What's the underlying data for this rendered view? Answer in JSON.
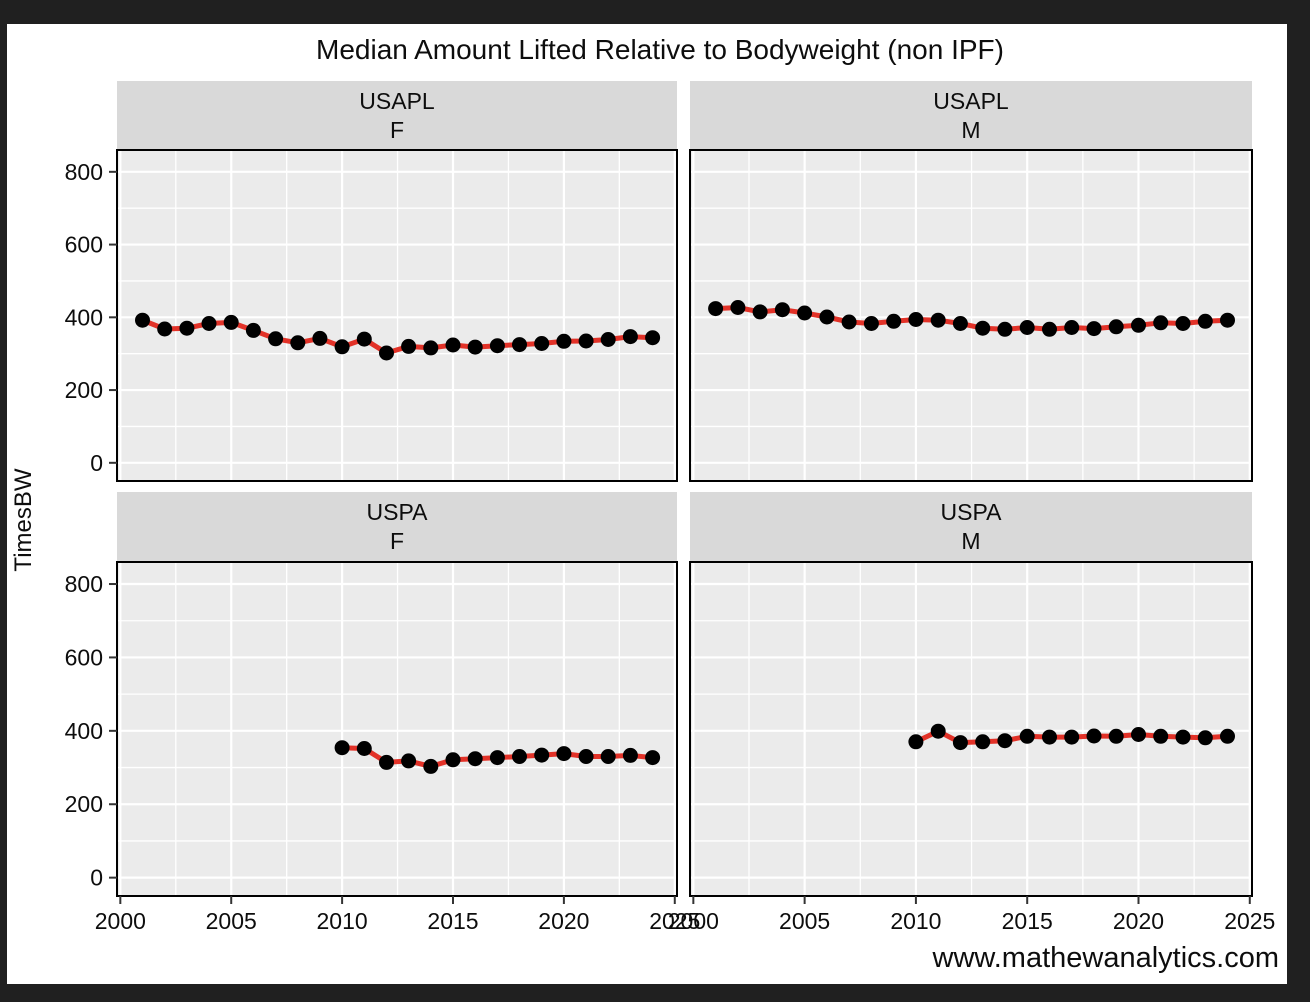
{
  "chart_data": {
    "type": "line",
    "title": "Median Amount Lifted Relative to Bodyweight (non IPF)",
    "ylabel": "TimesBW",
    "watermark": "www.mathewanalytics.com",
    "x_ticks": [
      2000,
      2005,
      2010,
      2015,
      2020,
      2025
    ],
    "y_ticks": [
      0,
      200,
      400,
      600,
      800
    ],
    "x_minor": [
      2002.5,
      2007.5,
      2012.5,
      2017.5,
      2022.5
    ],
    "y_minor": [
      100,
      300,
      500,
      700
    ],
    "xlim": [
      1999.85,
      2025.1
    ],
    "ylim": [
      -50,
      860
    ],
    "grid": true,
    "legend": "none",
    "colors": {
      "frame": "#202020",
      "background": "#ffffff",
      "panel_bg": "#ebebeb",
      "strip_bg": "#d9d9d9",
      "grid": "#ffffff",
      "line": "#e23228",
      "point": "#000000",
      "border": "#000000",
      "tick": "#333333",
      "text": "#0d0d0d"
    },
    "facets": [
      {
        "federation": "USAPL",
        "sex": "F",
        "years": [
          2001,
          2002,
          2003,
          2004,
          2005,
          2006,
          2007,
          2008,
          2009,
          2010,
          2011,
          2012,
          2013,
          2014,
          2015,
          2016,
          2017,
          2018,
          2019,
          2020,
          2021,
          2022,
          2023,
          2024
        ],
        "values": [
          392,
          368,
          370,
          383,
          386,
          364,
          341,
          330,
          342,
          319,
          340,
          302,
          320,
          316,
          324,
          318,
          322,
          325,
          328,
          334,
          335,
          339,
          347,
          344
        ]
      },
      {
        "federation": "USAPL",
        "sex": "M",
        "years": [
          2001,
          2002,
          2003,
          2004,
          2005,
          2006,
          2007,
          2008,
          2009,
          2010,
          2011,
          2012,
          2013,
          2014,
          2015,
          2016,
          2017,
          2018,
          2019,
          2020,
          2021,
          2022,
          2023,
          2024
        ],
        "values": [
          424,
          427,
          415,
          421,
          412,
          401,
          387,
          383,
          389,
          394,
          392,
          383,
          370,
          367,
          372,
          367,
          372,
          369,
          374,
          378,
          385,
          383,
          389,
          392
        ]
      },
      {
        "federation": "USPA",
        "sex": "F",
        "years": [
          2010,
          2011,
          2012,
          2013,
          2014,
          2015,
          2016,
          2017,
          2018,
          2019,
          2020,
          2021,
          2022,
          2023,
          2024
        ],
        "values": [
          354,
          352,
          314,
          318,
          303,
          321,
          324,
          327,
          330,
          334,
          338,
          330,
          330,
          333,
          327
        ]
      },
      {
        "federation": "USPA",
        "sex": "M",
        "years": [
          2010,
          2011,
          2012,
          2013,
          2014,
          2015,
          2016,
          2017,
          2018,
          2019,
          2020,
          2021,
          2022,
          2023,
          2024
        ],
        "values": [
          370,
          399,
          368,
          370,
          373,
          385,
          383,
          383,
          386,
          385,
          390,
          385,
          383,
          381,
          385
        ]
      }
    ]
  }
}
